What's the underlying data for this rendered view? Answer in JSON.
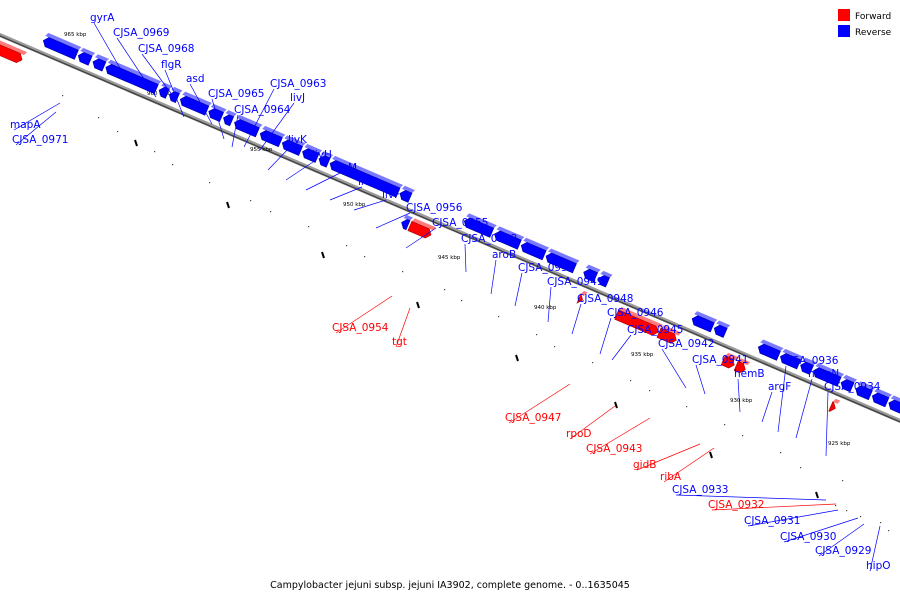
{
  "legend": {
    "forward_label": "Forward",
    "reverse_label": "Reverse",
    "forward_color": "#ff0000",
    "reverse_color": "#0000ff"
  },
  "caption": "Campylobacter jejuni subsp. jejuni IA3902, complete genome. - 0..1635045",
  "scale_labels": [
    "965 kbp",
    "960 kbp",
    "955 kbp",
    "950 kbp",
    "945 kbp",
    "940 kbp",
    "935 kbp",
    "930 kbp",
    "925 kbp"
  ],
  "genes": [
    {
      "name": "mapA",
      "strand": "reverse"
    },
    {
      "name": "CJSA_0971",
      "strand": "reverse"
    },
    {
      "name": "gyrA",
      "strand": "reverse"
    },
    {
      "name": "CJSA_0969",
      "strand": "reverse"
    },
    {
      "name": "CJSA_0968",
      "strand": "reverse"
    },
    {
      "name": "flgR",
      "strand": "reverse"
    },
    {
      "name": "asd",
      "strand": "reverse"
    },
    {
      "name": "CJSA_0965",
      "strand": "reverse"
    },
    {
      "name": "CJSA_0964",
      "strand": "reverse"
    },
    {
      "name": "CJSA_0963",
      "strand": "reverse"
    },
    {
      "name": "livJ",
      "strand": "reverse"
    },
    {
      "name": "livK",
      "strand": "reverse"
    },
    {
      "name": "livH",
      "strand": "reverse"
    },
    {
      "name": "livM",
      "strand": "reverse"
    },
    {
      "name": "livG",
      "strand": "reverse"
    },
    {
      "name": "livF",
      "strand": "reverse"
    },
    {
      "name": "CJSA_0956",
      "strand": "reverse"
    },
    {
      "name": "CJSA_0955",
      "strand": "reverse"
    },
    {
      "name": "CJSA_0954",
      "strand": "forward"
    },
    {
      "name": "tgt",
      "strand": "forward"
    },
    {
      "name": "CJSA_0952",
      "strand": "reverse"
    },
    {
      "name": "aroB",
      "strand": "reverse"
    },
    {
      "name": "CJSA_0950",
      "strand": "reverse"
    },
    {
      "name": "CJSA_0949",
      "strand": "reverse"
    },
    {
      "name": "CJSA_0948",
      "strand": "reverse"
    },
    {
      "name": "CJSA_0947",
      "strand": "forward"
    },
    {
      "name": "CJSA_0946",
      "strand": "reverse"
    },
    {
      "name": "CJSA_0945",
      "strand": "reverse"
    },
    {
      "name": "rpoD",
      "strand": "forward"
    },
    {
      "name": "CJSA_0943",
      "strand": "forward"
    },
    {
      "name": "CJSA_0942",
      "strand": "reverse"
    },
    {
      "name": "CJSA_0941",
      "strand": "reverse"
    },
    {
      "name": "gidB",
      "strand": "forward"
    },
    {
      "name": "ribA",
      "strand": "forward"
    },
    {
      "name": "hemB",
      "strand": "reverse"
    },
    {
      "name": "argF",
      "strand": "reverse"
    },
    {
      "name": "CJSA_0936",
      "strand": "reverse"
    },
    {
      "name": "hemN",
      "strand": "reverse"
    },
    {
      "name": "CJSA_0934",
      "strand": "reverse"
    },
    {
      "name": "CJSA_0933",
      "strand": "reverse"
    },
    {
      "name": "CJSA_0932",
      "strand": "forward"
    },
    {
      "name": "CJSA_0931",
      "strand": "reverse"
    },
    {
      "name": "CJSA_0930",
      "strand": "reverse"
    },
    {
      "name": "CJSA_0929",
      "strand": "reverse"
    },
    {
      "name": "hipO",
      "strand": "reverse"
    }
  ]
}
